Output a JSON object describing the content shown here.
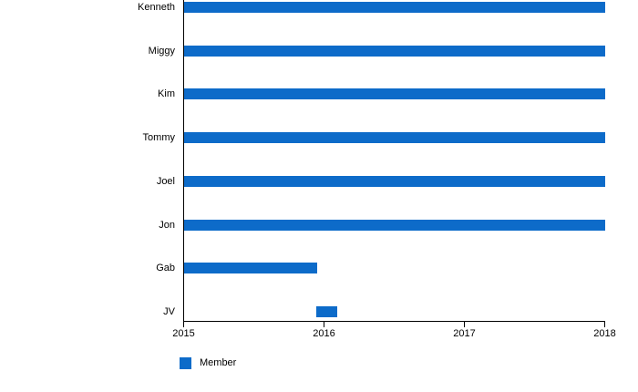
{
  "chart_data": {
    "type": "bar",
    "subtype": "horizontal-timeline",
    "title": "",
    "xlabel": "",
    "ylabel": "",
    "categories": [
      "Kenneth",
      "Miggy",
      "Kim",
      "Tommy",
      "Joel",
      "Jon",
      "Gab",
      "JV"
    ],
    "series": [
      {
        "name": "Member",
        "color": "#0d6bc9",
        "ranges": [
          [
            2015,
            2018
          ],
          [
            2015,
            2018
          ],
          [
            2015,
            2018
          ],
          [
            2015,
            2018
          ],
          [
            2015,
            2018
          ],
          [
            2015,
            2018
          ],
          [
            2015,
            2015.95
          ],
          [
            2015.94,
            2016.09
          ]
        ]
      }
    ],
    "xlim": [
      2015,
      2018
    ],
    "x_ticks": [
      2015,
      2016,
      2017,
      2018
    ],
    "x_tick_labels": [
      "2015",
      "2016",
      "2017",
      "2018"
    ],
    "grid": false,
    "axis_color": "#000000",
    "text_color": "#000000",
    "background_color": "#ffffff",
    "legend": {
      "position": "bottom-left",
      "items": [
        {
          "label": "Member",
          "color": "#0d6bc9"
        }
      ]
    }
  }
}
